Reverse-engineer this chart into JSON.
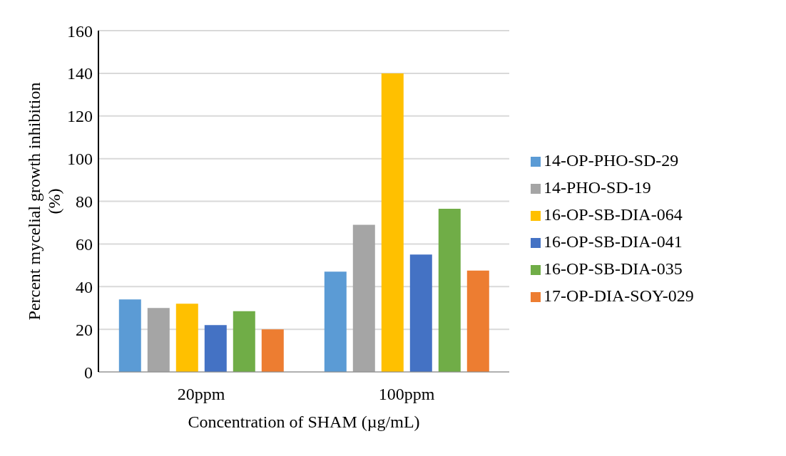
{
  "chart_data": {
    "type": "bar",
    "categories": [
      "20ppm",
      "100ppm"
    ],
    "xlabel": "Concentration of SHAM (µg/mL)",
    "ylabel": "Percent mycelial growth inhibition (%)",
    "series": [
      {
        "name": "14-OP-PHO-SD-29",
        "color": "#5b9bd5",
        "values": [
          34,
          47
        ]
      },
      {
        "name": "14-PHO-SD-19",
        "color": "#a5a5a5",
        "values": [
          30,
          69
        ]
      },
      {
        "name": "16-OP-SB-DIA-064",
        "color": "#ffc000",
        "values": [
          32,
          140
        ]
      },
      {
        "name": "16-OP-SB-DIA-041",
        "color": "#4472c4",
        "values": [
          22,
          55
        ]
      },
      {
        "name": "16-OP-SB-DIA-035",
        "color": "#70ad47",
        "values": [
          28.5,
          76.5
        ]
      },
      {
        "name": "17-OP-DIA-SOY-029",
        "color": "#ed7d31",
        "values": [
          20,
          47.5
        ]
      }
    ],
    "ylim": [
      0,
      160
    ],
    "yticks": [
      0,
      20,
      40,
      60,
      80,
      100,
      120,
      140,
      160
    ],
    "grid": "y",
    "legend": "right"
  }
}
